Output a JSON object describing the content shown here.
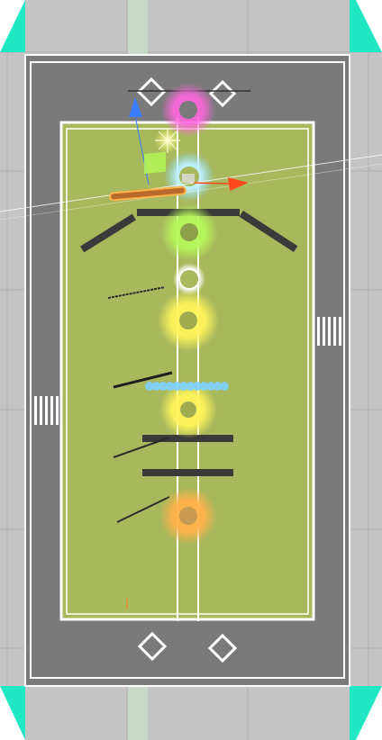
{
  "scene": {
    "colors": {
      "editor_bg": "#c4c4c4",
      "grid": "#b1b1b1",
      "corner_accent": "#1fe8c2",
      "frame": "#7a7a7a",
      "field": "#a8b85c",
      "wall": "#3a3a3a",
      "pink_ring": "#ff66dd",
      "cyan_ring": "#9fe9ff",
      "green_ring": "#a6f35a",
      "white_ring": "#ffffff",
      "yellow_ring": "#fff25a",
      "orange_ring": "#ffb14a",
      "blue_dots": "#7fd0ff",
      "gizmo_blue": "#3a7bff",
      "gizmo_red": "#ff4a1f",
      "gizmo_green": "#b5ff55"
    },
    "gizmo": {
      "transform_tool": "move",
      "axes": [
        "y-axis-arrow",
        "x-axis-arrow",
        "plane-handle"
      ]
    },
    "collectibles": [
      {
        "name": "pink-ring",
        "color_key": "pink_ring"
      },
      {
        "name": "cyan-ring",
        "color_key": "cyan_ring"
      },
      {
        "name": "green-ring",
        "color_key": "green_ring"
      },
      {
        "name": "white-ring",
        "color_key": "white_ring"
      },
      {
        "name": "yellow-ring-large",
        "color_key": "yellow_ring"
      },
      {
        "name": "yellow-ring-small",
        "color_key": "yellow_ring"
      },
      {
        "name": "orange-ring",
        "color_key": "orange_ring"
      }
    ],
    "blue_dot_count": 12
  }
}
